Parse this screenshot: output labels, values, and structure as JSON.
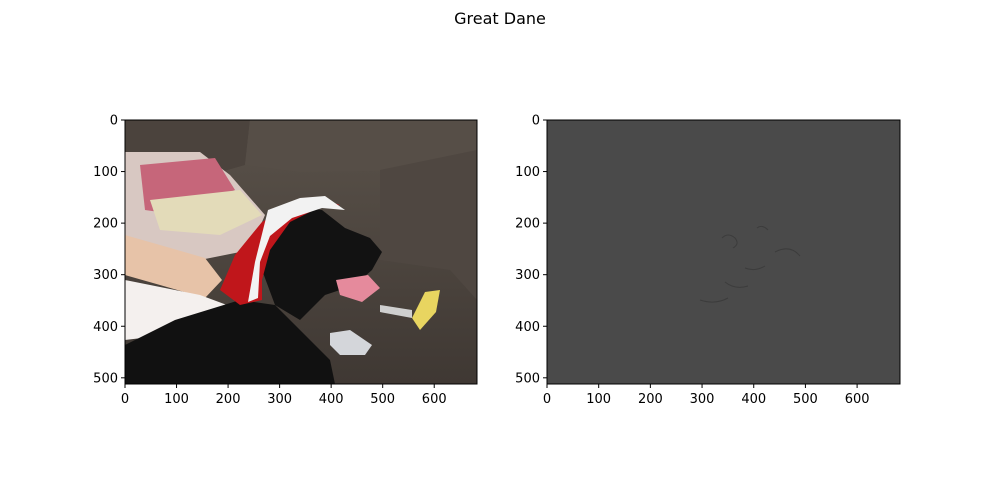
{
  "chart_data": {
    "type": "image",
    "title": "Great Dane",
    "panels": [
      {
        "id": "left",
        "content": "photo of a black dog wearing a red and white Santa hat on a sofa",
        "xlim": [
          0,
          683
        ],
        "ylim": [
          512,
          0
        ],
        "xticks": [
          0,
          100,
          200,
          300,
          400,
          500,
          600
        ],
        "yticks": [
          0,
          100,
          200,
          300,
          400,
          500
        ]
      },
      {
        "id": "right",
        "content": "near-uniform dark grey map with faint dog-shaped edges",
        "xlim": [
          0,
          683
        ],
        "ylim": [
          512,
          0
        ],
        "xticks": [
          0,
          100,
          200,
          300,
          400,
          500,
          600
        ],
        "yticks": [
          0,
          100,
          200,
          300,
          400,
          500
        ]
      }
    ]
  },
  "colors": {
    "panel_right_fill": "#4a4a4a",
    "sofa": "#4e463f",
    "dog": "#111111",
    "hat_red": "#c0161b",
    "hat_white": "#f2f2f2"
  }
}
